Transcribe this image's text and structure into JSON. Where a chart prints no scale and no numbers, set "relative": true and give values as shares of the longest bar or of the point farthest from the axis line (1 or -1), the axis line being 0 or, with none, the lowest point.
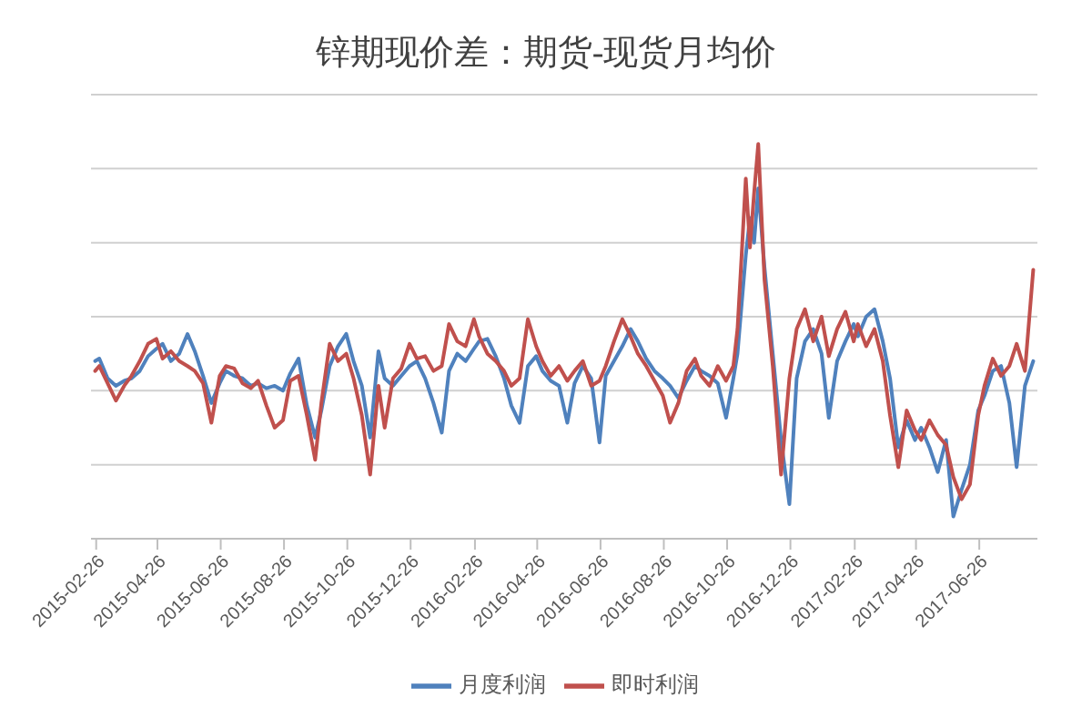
{
  "chart_data": {
    "type": "line",
    "title": "锌期现价差：期货-现货月均价",
    "relative": true,
    "grid": "y",
    "legend": "bottom",
    "xlim": [
      "2015-02-21",
      "2017-08-21"
    ],
    "xticks": [
      "2015-02-26",
      "2015-04-26",
      "2015-06-26",
      "2015-08-26",
      "2015-10-26",
      "2015-12-26",
      "2016-02-26",
      "2016-04-26",
      "2016-06-26",
      "2016-08-26",
      "2016-10-26",
      "2016-12-26",
      "2017-02-26",
      "2017-04-26",
      "2017-06-26"
    ],
    "x": [
      "2015-02-25",
      "2015-03-01",
      "2015-03-09",
      "2015-03-17",
      "2015-03-25",
      "2015-04-01",
      "2015-04-09",
      "2015-04-17",
      "2015-04-25",
      "2015-05-01",
      "2015-05-09",
      "2015-05-17",
      "2015-05-25",
      "2015-06-01",
      "2015-06-09",
      "2015-06-17",
      "2015-06-25",
      "2015-07-01",
      "2015-07-09",
      "2015-07-17",
      "2015-07-25",
      "2015-08-01",
      "2015-08-09",
      "2015-08-17",
      "2015-08-25",
      "2015-09-01",
      "2015-09-09",
      "2015-09-17",
      "2015-09-25",
      "2015-10-01",
      "2015-10-09",
      "2015-10-17",
      "2015-10-25",
      "2015-11-01",
      "2015-11-09",
      "2015-11-17",
      "2015-11-25",
      "2015-12-01",
      "2015-12-09",
      "2015-12-17",
      "2015-12-25",
      "2016-01-01",
      "2016-01-09",
      "2016-01-17",
      "2016-01-25",
      "2016-02-01",
      "2016-02-09",
      "2016-02-17",
      "2016-02-25",
      "2016-03-01",
      "2016-03-09",
      "2016-03-17",
      "2016-03-25",
      "2016-04-01",
      "2016-04-09",
      "2016-04-17",
      "2016-04-25",
      "2016-05-01",
      "2016-05-09",
      "2016-05-17",
      "2016-05-25",
      "2016-06-01",
      "2016-06-09",
      "2016-06-17",
      "2016-06-25",
      "2016-07-01",
      "2016-07-09",
      "2016-07-17",
      "2016-07-25",
      "2016-08-01",
      "2016-08-09",
      "2016-08-17",
      "2016-08-25",
      "2016-09-01",
      "2016-09-09",
      "2016-09-17",
      "2016-09-25",
      "2016-10-01",
      "2016-10-09",
      "2016-10-17",
      "2016-10-25",
      "2016-11-01",
      "2016-11-05",
      "2016-11-09",
      "2016-11-13",
      "2016-11-17",
      "2016-11-21",
      "2016-11-25",
      "2016-12-01",
      "2016-12-09",
      "2016-12-17",
      "2016-12-25",
      "2017-01-01",
      "2017-01-09",
      "2017-01-17",
      "2017-01-25",
      "2017-02-01",
      "2017-02-09",
      "2017-02-17",
      "2017-02-25",
      "2017-03-01",
      "2017-03-09",
      "2017-03-17",
      "2017-03-25",
      "2017-04-01",
      "2017-04-09",
      "2017-04-17",
      "2017-04-25",
      "2017-05-01",
      "2017-05-09",
      "2017-05-17",
      "2017-05-25",
      "2017-06-01",
      "2017-06-09",
      "2017-06-17",
      "2017-06-25",
      "2017-07-01",
      "2017-07-09",
      "2017-07-17",
      "2017-07-25",
      "2017-08-01",
      "2017-08-09",
      "2017-08-17"
    ],
    "series": [
      {
        "name": "月度利润",
        "color": "#4f81bd",
        "values": [
          0.12,
          0.13,
          0.05,
          0.02,
          0.04,
          0.05,
          0.08,
          0.14,
          0.17,
          0.19,
          0.12,
          0.15,
          0.23,
          0.16,
          0.06,
          -0.05,
          0.03,
          0.08,
          0.06,
          0.05,
          0.02,
          0.03,
          0.01,
          0.02,
          0.0,
          0.07,
          0.13,
          -0.06,
          -0.19,
          -0.08,
          0.1,
          0.18,
          0.23,
          0.12,
          0.02,
          -0.19,
          0.16,
          0.05,
          0.02,
          0.06,
          0.1,
          0.12,
          0.05,
          -0.05,
          -0.17,
          0.08,
          0.15,
          0.12,
          0.17,
          0.2,
          0.21,
          0.14,
          0.05,
          -0.06,
          -0.13,
          0.1,
          0.14,
          0.08,
          0.04,
          0.02,
          -0.13,
          0.03,
          0.1,
          0.05,
          -0.21,
          0.06,
          0.12,
          0.18,
          0.25,
          0.2,
          0.13,
          0.08,
          0.05,
          0.02,
          -0.03,
          0.04,
          0.1,
          0.08,
          0.06,
          0.03,
          -0.11,
          0.05,
          0.15,
          0.35,
          0.55,
          0.7,
          0.6,
          0.82,
          0.5,
          0.15,
          -0.2,
          -0.46,
          0.05,
          0.2,
          0.25,
          0.15,
          -0.11,
          0.12,
          0.2,
          0.27,
          0.22,
          0.3,
          0.33,
          0.2,
          0.05,
          -0.23,
          -0.12,
          -0.2,
          -0.15,
          -0.23,
          -0.33,
          -0.2,
          -0.51,
          -0.4,
          -0.3,
          -0.08,
          -0.02,
          0.08,
          0.1,
          -0.05,
          -0.31,
          0.02,
          0.12
        ]
      },
      {
        "name": "即时利润",
        "color": "#c0504d",
        "values": [
          0.08,
          0.1,
          0.03,
          -0.04,
          0.02,
          0.06,
          0.12,
          0.19,
          0.21,
          0.13,
          0.16,
          0.12,
          0.1,
          0.08,
          0.03,
          -0.13,
          0.06,
          0.1,
          0.09,
          0.03,
          0.01,
          0.04,
          -0.06,
          -0.15,
          -0.12,
          0.04,
          0.06,
          -0.1,
          -0.28,
          -0.05,
          0.19,
          0.12,
          0.15,
          0.05,
          -0.1,
          -0.34,
          0.02,
          -0.15,
          0.05,
          0.09,
          0.19,
          0.13,
          0.14,
          0.08,
          0.1,
          0.27,
          0.2,
          0.18,
          0.29,
          0.22,
          0.15,
          0.12,
          0.08,
          0.02,
          0.05,
          0.29,
          0.18,
          0.12,
          0.06,
          0.1,
          0.04,
          0.08,
          0.12,
          0.02,
          0.04,
          0.1,
          0.2,
          0.29,
          0.22,
          0.15,
          0.1,
          0.04,
          -0.02,
          -0.13,
          -0.05,
          0.08,
          0.13,
          0.06,
          0.02,
          0.1,
          0.04,
          0.1,
          0.25,
          0.55,
          0.86,
          0.58,
          0.8,
          1.0,
          0.45,
          0.1,
          -0.34,
          0.05,
          0.25,
          0.33,
          0.2,
          0.3,
          0.14,
          0.25,
          0.32,
          0.2,
          0.27,
          0.18,
          0.25,
          0.12,
          -0.1,
          -0.31,
          -0.08,
          -0.16,
          -0.2,
          -0.12,
          -0.18,
          -0.22,
          -0.35,
          -0.44,
          -0.38,
          -0.1,
          0.02,
          0.13,
          0.06,
          0.1,
          0.19,
          0.08,
          0.49
        ]
      }
    ]
  }
}
